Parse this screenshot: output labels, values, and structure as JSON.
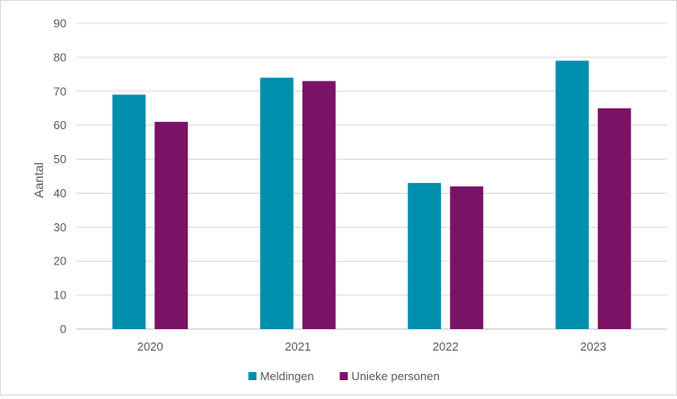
{
  "chart_data": {
    "type": "bar",
    "title": "",
    "xlabel": "",
    "ylabel": "Aantal",
    "categories": [
      "2020",
      "2021",
      "2022",
      "2023"
    ],
    "series": [
      {
        "name": "Meldingen",
        "values": [
          69,
          74,
          43,
          79
        ],
        "color": "#008fad"
      },
      {
        "name": "Unieke personen",
        "values": [
          61,
          73,
          42,
          65
        ],
        "color": "#7a1266"
      }
    ],
    "ylim": [
      0,
      90
    ],
    "yticks": [
      0,
      10,
      20,
      30,
      40,
      50,
      60,
      70,
      80,
      90
    ],
    "grid": true,
    "legend_position": "bottom"
  }
}
